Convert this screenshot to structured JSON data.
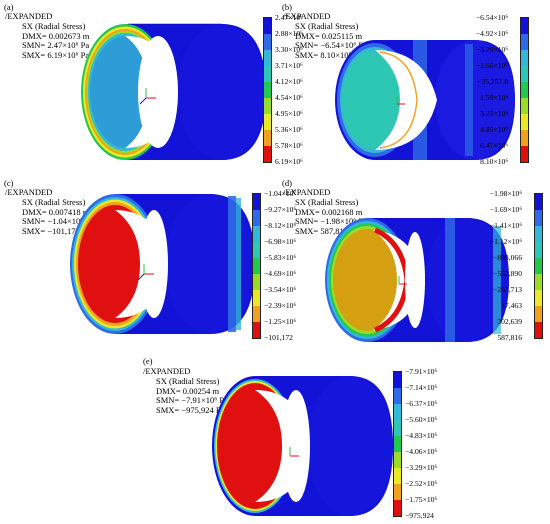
{
  "colors": {
    "dark_blue": "#1313d8",
    "mid_blue": "#2f6ae8",
    "cyan": "#33b8d8",
    "teal": "#2ec7b3",
    "green": "#25c74d",
    "yellow_green": "#9bdd26",
    "yellow": "#e9e928",
    "orange": "#f2a01f",
    "orange_red": "#f26519",
    "red": "#e01010",
    "gold": "#d4a012"
  },
  "panels": [
    {
      "label": "(a)",
      "title": "/EXPANDED",
      "quantity": "SX (Radial Stress)",
      "dmx": "DMX= 0.002673 m",
      "smn": "SMN= 2.47×10⁶ Pa",
      "smx": "SMX= 6.19×10⁶ Pa",
      "legend": [
        "2.47×10⁶",
        "2.88×10⁶",
        "3.30×10⁶",
        "3.71×10⁶",
        "4.12×10⁶",
        "4.54×10⁶",
        "4.95×10⁶",
        "5.36×10⁶",
        "5.78×10⁶",
        "6.19×10⁶"
      ]
    },
    {
      "label": "(b)",
      "title": "/EXPANDED",
      "quantity": "SX (Radial Stress)",
      "dmx": "DMX= 0.025115 m",
      "smn": "SMN= −6.54×10⁶ Pa",
      "smx": "SMX= 8.10×10⁶ Pa",
      "legend": [
        "−6.54×10⁶",
        "−4.92×10⁶",
        "−3.29×10⁶",
        "−1.66×10⁶",
        "−35,257.8",
        "1.59×10⁶",
        "3.22×10⁶",
        "4.85×10⁶",
        "6.47×10⁶",
        "8.10×10⁶"
      ]
    },
    {
      "label": "(c)",
      "title": "/EXPANDED",
      "quantity": "SX (Radial Stress)",
      "dmx": "DMX= 0.007418 m",
      "smn": "SMN= −1.04×10⁷ Pa",
      "smx": "SMX= −101,172 Pa",
      "legend": [
        "−1.04×10⁷",
        "−9.27×10⁶",
        "−8.12×10⁶",
        "−6.98×10⁶",
        "−5.83×10⁶",
        "−4.69×10⁶",
        "−3.54×10⁶",
        "−2.39×10⁶",
        "−1.25×10⁶",
        "−101,172"
      ]
    },
    {
      "label": "(d)",
      "title": "/EXPANDED",
      "quantity": "SX (Radial Stress)",
      "dmx": "DMX= 0.002168 m",
      "smn": "SMN= −1.98×10⁶ Pa",
      "smx": "SMX= 587,816 Pa",
      "legend": [
        "−1.98×10⁶",
        "−1.69×10⁶",
        "−1.41×10⁶",
        "−1.12×10⁶",
        "−838,066",
        "−552,890",
        "−267,713",
        "17,463",
        "302,639",
        "587,816"
      ]
    },
    {
      "label": "(e)",
      "title": "/EXPANDED",
      "quantity": "SX (Radial Stress)",
      "dmx": "DMX= 0.00254 m",
      "smn": "SMN= −7.91×10⁶ Pa",
      "smx": "SMX= −975,924 Pa",
      "legend": [
        "−7.91×10⁶",
        "−7.14×10⁶",
        "−6.37×10⁶",
        "−5.60×10⁶",
        "−4.83×10⁶",
        "−4.06×10⁶",
        "−3.29×10⁶",
        "−2.52×10⁶",
        "−1.75×10⁶",
        "−975,924"
      ]
    }
  ]
}
